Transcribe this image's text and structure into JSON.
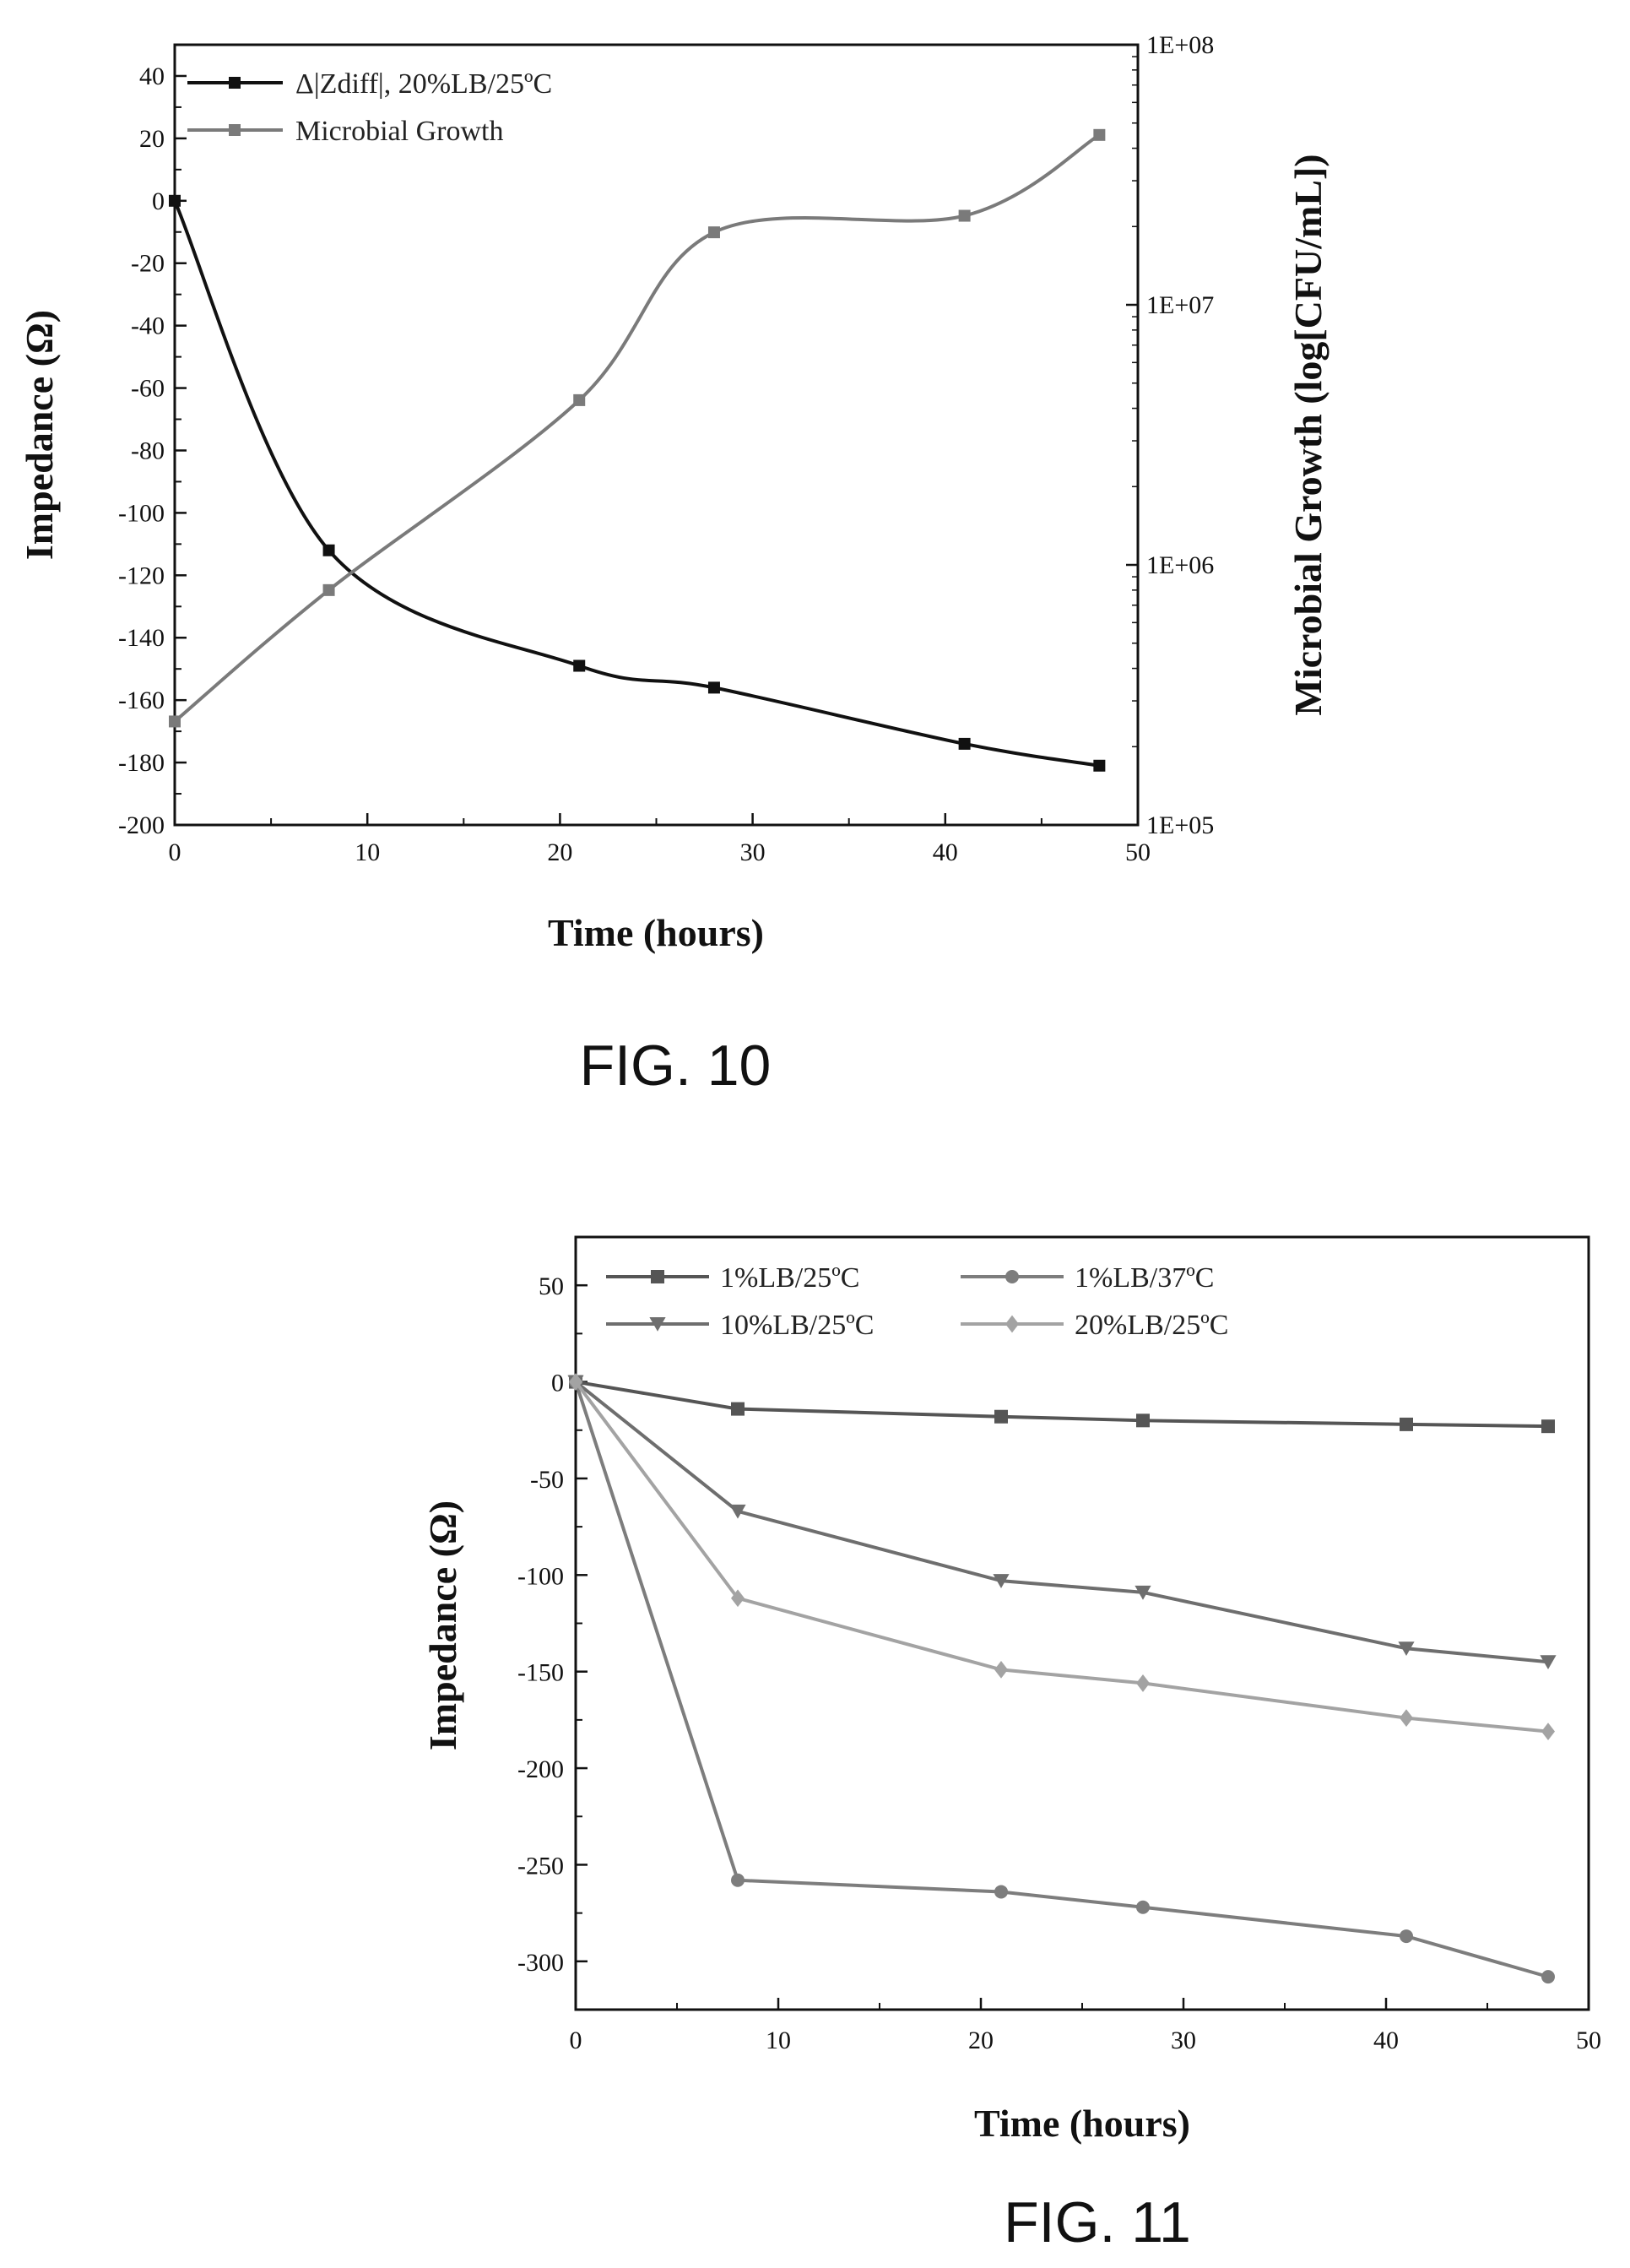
{
  "figures": [
    {
      "caption": "FIG. 10"
    },
    {
      "caption": "FIG. 11"
    }
  ],
  "chart_data": [
    {
      "type": "line",
      "xlabel": "Time (hours)",
      "ylabel": "Impedance (Ω)",
      "y2label": "Microbial Growth (log[CFU/mL])",
      "xlim": [
        0,
        50
      ],
      "ylim": [
        -200,
        50
      ],
      "y2lim": [
        100000,
        100000000
      ],
      "y2scale": "log",
      "x_ticks": [
        0,
        10,
        20,
        30,
        40,
        50
      ],
      "x_tick_labels": [
        "0",
        "10",
        "20",
        "30",
        "40",
        "50"
      ],
      "y_ticks": [
        40,
        20,
        0,
        -20,
        -40,
        -60,
        -80,
        -100,
        -120,
        -140,
        -160,
        -180,
        -200
      ],
      "y_tick_labels": [
        "40",
        "20",
        "0",
        "-20",
        "-40",
        "-60",
        "-80",
        "-100",
        "-120",
        "-140",
        "-160",
        "-180",
        "-200"
      ],
      "y2_ticks": [
        100000,
        1000000,
        10000000,
        100000000
      ],
      "y2_tick_labels": [
        "1E+05",
        "1E+06",
        "1E+07",
        "1E+08"
      ],
      "legend_position": "top-left",
      "grid": false,
      "series": [
        {
          "name": "Δ|Zdiff|, 20%LB/25ºC",
          "axis": "left",
          "color": "#111111",
          "marker": "square",
          "x": [
            0,
            8,
            21,
            28,
            41,
            48
          ],
          "y": [
            0,
            -112,
            -149,
            -156,
            -174,
            -181
          ]
        },
        {
          "name": "Microbial Growth",
          "axis": "right",
          "color": "#7a7a7a",
          "marker": "square",
          "x": [
            0,
            8,
            21,
            28,
            41,
            48
          ],
          "y": [
            250000,
            800000,
            4300000,
            19000000,
            22000000,
            45000000
          ]
        }
      ]
    },
    {
      "type": "line",
      "xlabel": "Time (hours)",
      "ylabel": "Impedance (Ω)",
      "xlim": [
        0,
        50
      ],
      "ylim": [
        -325,
        75
      ],
      "x_ticks": [
        0,
        10,
        20,
        30,
        40,
        50
      ],
      "x_tick_labels": [
        "0",
        "10",
        "20",
        "30",
        "40",
        "50"
      ],
      "y_ticks": [
        50,
        0,
        -50,
        -100,
        -150,
        -200,
        -250,
        -300
      ],
      "y_tick_labels": [
        "50",
        "0",
        "-50",
        "-100",
        "-150",
        "-200",
        "-250",
        "-300"
      ],
      "legend_position": "top",
      "grid": false,
      "series": [
        {
          "name": "1%LB/25ºC",
          "color": "#555555",
          "marker": "square",
          "x": [
            0,
            8,
            21,
            28,
            41,
            48
          ],
          "y": [
            0,
            -14,
            -18,
            -20,
            -22,
            -23
          ]
        },
        {
          "name": "1%LB/37ºC",
          "color": "#7d7d7d",
          "marker": "circle",
          "x": [
            0,
            8,
            21,
            28,
            41,
            48
          ],
          "y": [
            0,
            -258,
            -264,
            -272,
            -287,
            -308
          ]
        },
        {
          "name": "10%LB/25ºC",
          "color": "#6e6e6e",
          "marker": "triangle-down",
          "x": [
            0,
            8,
            21,
            28,
            41,
            48
          ],
          "y": [
            0,
            -67,
            -103,
            -109,
            -138,
            -145
          ]
        },
        {
          "name": "20%LB/25ºC",
          "color": "#a3a3a3",
          "marker": "diamond",
          "x": [
            0,
            8,
            21,
            28,
            41,
            48
          ],
          "y": [
            0,
            -112,
            -149,
            -156,
            -174,
            -181
          ]
        }
      ]
    }
  ]
}
